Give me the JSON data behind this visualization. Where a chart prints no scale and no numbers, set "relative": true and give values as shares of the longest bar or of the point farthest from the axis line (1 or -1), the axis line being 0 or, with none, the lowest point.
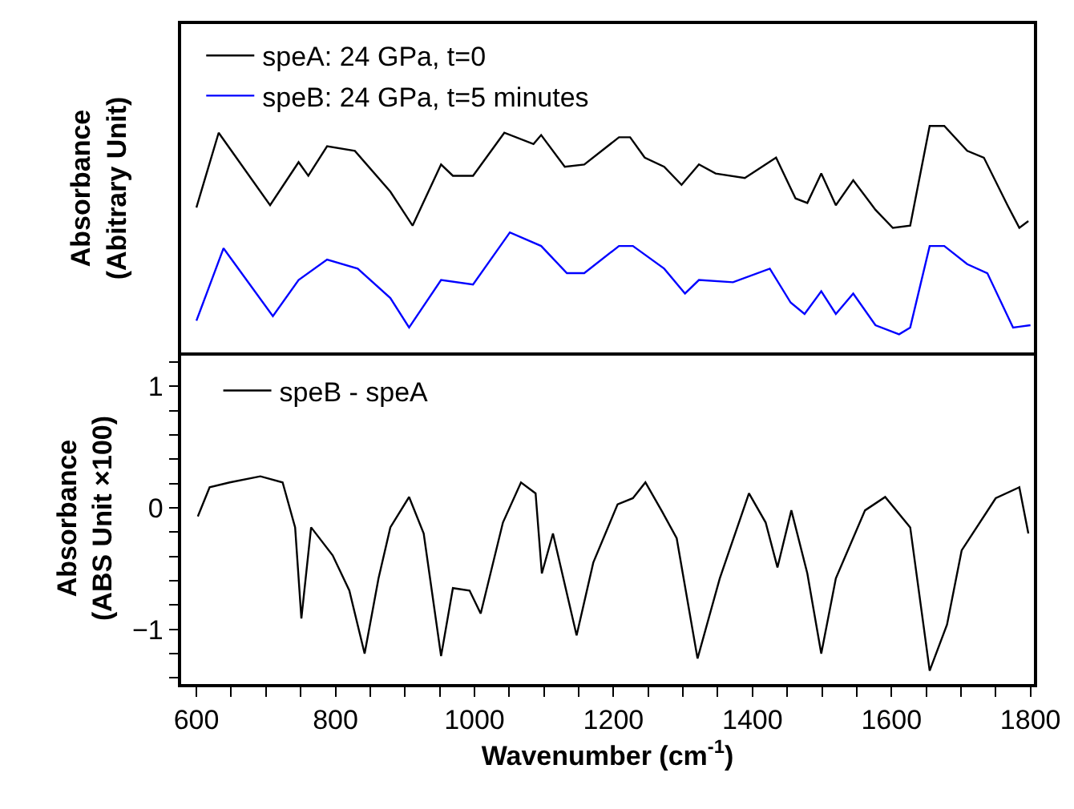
{
  "chart_data": [
    {
      "type": "line",
      "relative": true,
      "ylabel": "Absorbance\n(Abitrary Unit)",
      "xlim": [
        578,
        1805
      ],
      "tick_labels": false,
      "legend": "top left",
      "grid": false,
      "line_style": "solid",
      "series": [
        {
          "name": "speA: 24 GPa, t=0",
          "color": "#000000",
          "x": [
            600,
            632,
            706,
            747,
            761,
            788,
            828,
            879,
            911,
            952,
            969,
            998,
            1043,
            1085,
            1096,
            1130,
            1158,
            1208,
            1224,
            1245,
            1273,
            1298,
            1323,
            1347,
            1389,
            1434,
            1462,
            1479,
            1499,
            1520,
            1545,
            1577,
            1602,
            1627,
            1655,
            1676,
            1709,
            1733,
            1767,
            1784,
            1797
          ],
          "values": [
            0.64,
            0.97,
            0.65,
            0.84,
            0.78,
            0.91,
            0.89,
            0.71,
            0.56,
            0.83,
            0.78,
            0.78,
            0.97,
            0.92,
            0.96,
            0.82,
            0.83,
            0.95,
            0.95,
            0.86,
            0.82,
            0.74,
            0.83,
            0.79,
            0.77,
            0.86,
            0.68,
            0.66,
            0.79,
            0.65,
            0.76,
            0.63,
            0.55,
            0.56,
            1.0,
            1.0,
            0.89,
            0.86,
            0.65,
            0.55,
            0.58
          ]
        },
        {
          "name": "speB: 24 GPa, t=5 minutes",
          "color": "#0000ff",
          "x": [
            600,
            639,
            710,
            747,
            788,
            832,
            879,
            906,
            952,
            998,
            1051,
            1096,
            1133,
            1158,
            1208,
            1228,
            1273,
            1303,
            1323,
            1372,
            1425,
            1455,
            1475,
            1499,
            1520,
            1545,
            1577,
            1611,
            1627,
            1655,
            1676,
            1709,
            1738,
            1775,
            1800
          ],
          "values": [
            0.14,
            0.46,
            0.16,
            0.32,
            0.41,
            0.37,
            0.24,
            0.11,
            0.32,
            0.3,
            0.53,
            0.47,
            0.35,
            0.35,
            0.47,
            0.47,
            0.37,
            0.26,
            0.32,
            0.31,
            0.37,
            0.22,
            0.17,
            0.27,
            0.17,
            0.26,
            0.12,
            0.08,
            0.11,
            0.47,
            0.47,
            0.39,
            0.35,
            0.11,
            0.12
          ]
        }
      ]
    },
    {
      "type": "line",
      "xlabel": "Wavenumber (cm$^{-1}$)",
      "ylabel": "Absorbance\n(ABS Unit ×100)",
      "xlim": [
        578,
        1805
      ],
      "ylim": [
        -1.45,
        1.28
      ],
      "legend": "top left",
      "grid": false,
      "line_style": "solid",
      "xticks": [
        600,
        {
          "value": 650,
          "label": null
        },
        800,
        {
          "value": 700,
          "label": null
        },
        {
          "value": 750,
          "label": null
        },
        {
          "value": 850,
          "label": null
        },
        {
          "value": 900,
          "label": null
        },
        {
          "value": 950,
          "label": null
        },
        1000,
        {
          "value": 1050,
          "label": null
        },
        {
          "value": 1100,
          "label": null
        },
        {
          "value": 1150,
          "label": null
        },
        1200,
        {
          "value": 1250,
          "label": null
        },
        {
          "value": 1300,
          "label": null
        },
        {
          "value": 1350,
          "label": null
        },
        1400,
        {
          "value": 1450,
          "label": null
        },
        {
          "value": 1500,
          "label": null
        },
        {
          "value": 1550,
          "label": null
        },
        1600,
        {
          "value": 1650,
          "label": null
        },
        {
          "value": 1700,
          "label": null
        },
        {
          "value": 1750,
          "label": null
        },
        1800
      ],
      "yticks": [
        {
          "value": -1.4,
          "label": null
        },
        {
          "value": -1.2,
          "label": null
        },
        -1,
        {
          "value": -0.8,
          "label": null
        },
        {
          "value": -0.6,
          "label": null
        },
        {
          "value": -0.4,
          "label": null
        },
        {
          "value": -0.2,
          "label": null
        },
        0,
        {
          "value": 0.2,
          "label": null
        },
        {
          "value": 0.4,
          "label": null
        },
        {
          "value": 0.6,
          "label": null
        },
        {
          "value": 0.8,
          "label": null
        },
        1,
        {
          "value": 1.2,
          "label": null
        }
      ],
      "series": [
        {
          "name": "speB - speA",
          "color": "#000000",
          "x": [
            602,
            619,
            648,
            692,
            724,
            742,
            751,
            765,
            796,
            820,
            842,
            862,
            879,
            906,
            927,
            952,
            969,
            993,
            1009,
            1041,
            1067,
            1088,
            1097,
            1113,
            1147,
            1171,
            1206,
            1228,
            1246,
            1270,
            1291,
            1321,
            1353,
            1395,
            1419,
            1436,
            1456,
            1479,
            1499,
            1520,
            1562,
            1591,
            1627,
            1655,
            1680,
            1701,
            1750,
            1784,
            1797
          ],
          "values": [
            -0.07,
            0.17,
            0.21,
            0.26,
            0.21,
            -0.16,
            -0.91,
            -0.16,
            -0.39,
            -0.68,
            -1.2,
            -0.58,
            -0.16,
            0.09,
            -0.21,
            -1.22,
            -0.66,
            -0.68,
            -0.87,
            -0.12,
            0.21,
            0.12,
            -0.54,
            -0.21,
            -1.05,
            -0.45,
            0.03,
            0.08,
            0.21,
            -0.03,
            -0.25,
            -1.24,
            -0.58,
            0.12,
            -0.12,
            -0.49,
            -0.02,
            -0.54,
            -1.2,
            -0.58,
            -0.02,
            0.09,
            -0.16,
            -1.34,
            -0.96,
            -0.35,
            0.08,
            0.17,
            -0.21
          ]
        }
      ]
    }
  ]
}
